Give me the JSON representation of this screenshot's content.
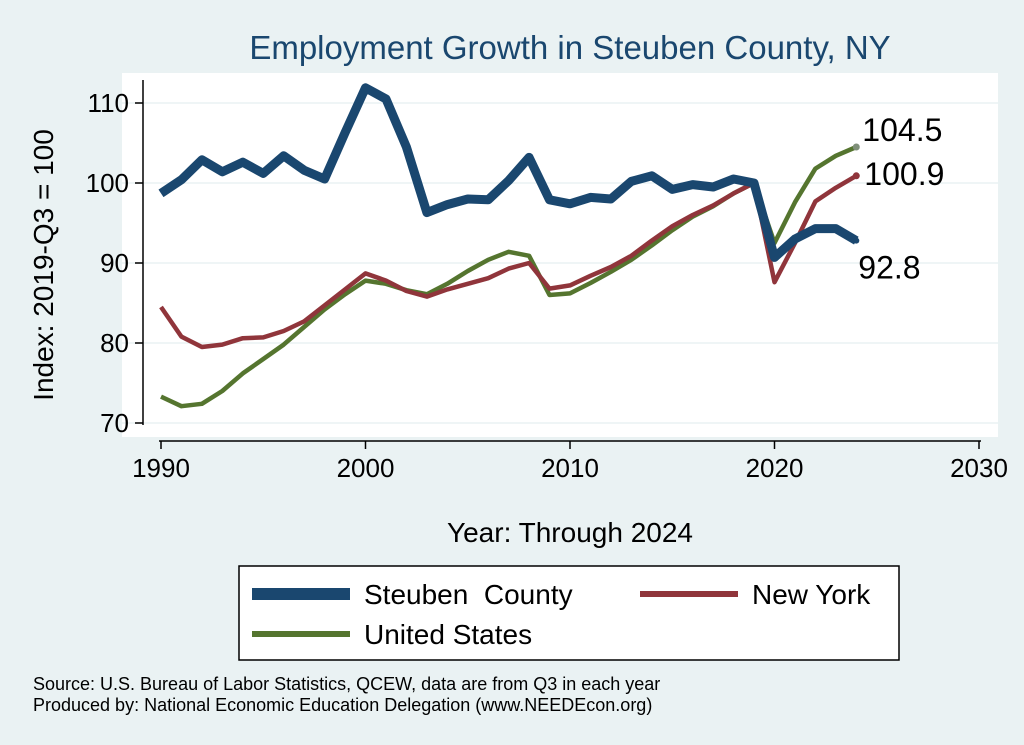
{
  "chart_data": {
    "type": "line",
    "title": "Employment Growth in Steuben County, NY",
    "xlabel": "Year: Through 2024",
    "ylabel": "Index: 2019-Q3 = 100",
    "xlim": [
      1990,
      2030
    ],
    "ylim": [
      70,
      114
    ],
    "x_ticks": [
      1990,
      2000,
      2010,
      2020,
      2030
    ],
    "y_ticks": [
      70,
      80,
      90,
      100,
      110
    ],
    "grid": true,
    "x": [
      1990,
      1991,
      1992,
      1993,
      1994,
      1995,
      1996,
      1997,
      1998,
      1999,
      2000,
      2001,
      2002,
      2003,
      2004,
      2005,
      2006,
      2007,
      2008,
      2009,
      2010,
      2011,
      2012,
      2013,
      2014,
      2015,
      2016,
      2017,
      2018,
      2019,
      2020,
      2021,
      2022,
      2023,
      2024
    ],
    "series": [
      {
        "name": "Steuben  County",
        "color": "#1a476f",
        "values": [
          98.7,
          100.4,
          102.9,
          101.4,
          102.6,
          101.2,
          103.4,
          101.6,
          100.5,
          106.3,
          111.9,
          110.5,
          104.5,
          96.3,
          97.3,
          98.0,
          97.9,
          100.3,
          103.2,
          97.9,
          97.4,
          98.2,
          98.0,
          100.2,
          100.9,
          99.2,
          99.8,
          99.5,
          100.5,
          100.0,
          90.7,
          93.0,
          94.3,
          94.3,
          92.8
        ],
        "end_label": "92.8"
      },
      {
        "name": "New York",
        "color": "#90353b",
        "values": [
          84.5,
          80.8,
          79.5,
          79.8,
          80.6,
          80.7,
          81.5,
          82.7,
          84.7,
          86.7,
          88.7,
          87.8,
          86.5,
          85.8,
          86.7,
          87.4,
          88.1,
          89.3,
          90.0,
          86.8,
          87.2,
          88.4,
          89.5,
          90.9,
          92.8,
          94.6,
          96.0,
          97.2,
          98.7,
          100.0,
          87.6,
          92.5,
          97.7,
          99.4,
          100.9
        ],
        "end_label": "100.9"
      },
      {
        "name": "United States",
        "color": "#55752f",
        "values": [
          73.3,
          72.1,
          72.4,
          74.0,
          76.2,
          78.0,
          79.8,
          82.0,
          84.2,
          86.1,
          87.8,
          87.4,
          86.6,
          86.1,
          87.4,
          89.0,
          90.4,
          91.4,
          90.9,
          86.0,
          86.2,
          87.5,
          88.9,
          90.4,
          92.2,
          94.1,
          95.8,
          97.1,
          98.7,
          100.0,
          92.5,
          97.6,
          101.8,
          103.4,
          104.5
        ],
        "end_label": "104.5"
      }
    ],
    "legend": {
      "placement": "bottom",
      "items": [
        "Steuben  County",
        "New York",
        "United States"
      ]
    }
  },
  "source_note": "Source: U.S. Bureau of Labor Statistics, QCEW, data are from Q3 in each year",
  "producer_note": "Produced by: National Economic Education Delegation (www.NEEDEcon.org)"
}
